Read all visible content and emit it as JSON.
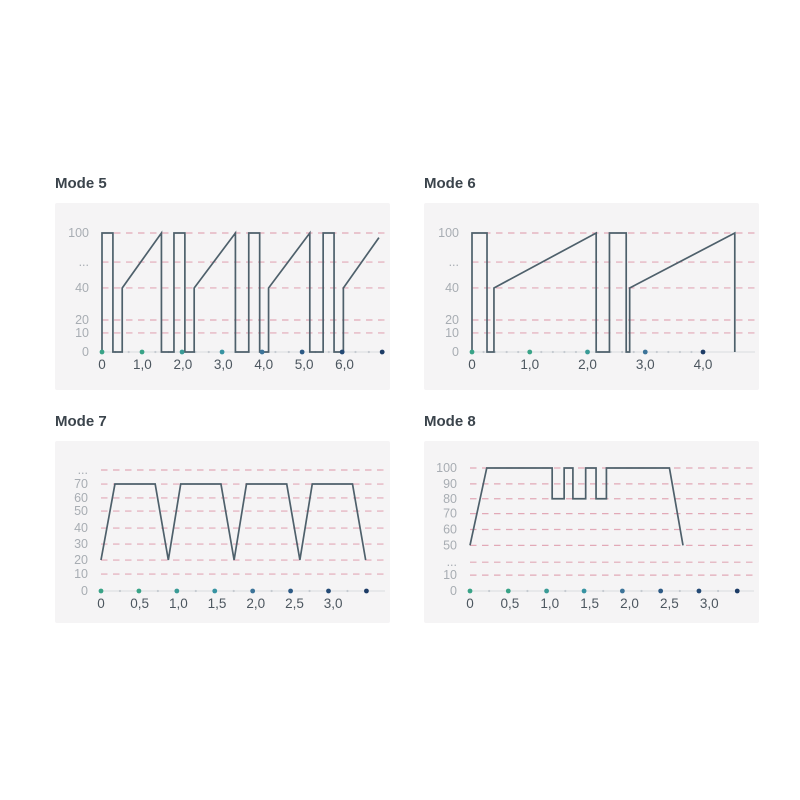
{
  "page": {
    "background": "#ffffff"
  },
  "style": {
    "panel_bg": "#f5f4f5",
    "waveform_color": "#4e606b",
    "grid_color": "#e2a9b7",
    "y_label_color": "#a8adb3",
    "x_label_color": "#4c565f",
    "title_color": "#3b444c",
    "baseline_color": "#d9dcde",
    "minor_dot_color": "#c5cad0"
  },
  "chart_data": [
    {
      "type": "line",
      "title": "Mode 5",
      "xlabel": "",
      "ylabel": "",
      "xlim": [
        0,
        7.0
      ],
      "grid": "horizontal-dashed",
      "x_ticks": [
        {
          "x": 0,
          "label": "0"
        },
        {
          "x": 1,
          "label": "1,0"
        },
        {
          "x": 2,
          "label": "2,0"
        },
        {
          "x": 3,
          "label": "3,0"
        },
        {
          "x": 4,
          "label": "4,0"
        },
        {
          "x": 5,
          "label": "5,0"
        },
        {
          "x": 6,
          "label": "6,0"
        }
      ],
      "y_ticks": [
        {
          "label": "100",
          "f": 1.0
        },
        {
          "label": "...",
          "f": 0.756
        },
        {
          "label": "40",
          "f": 0.538
        },
        {
          "label": "20",
          "f": 0.269
        },
        {
          "label": "10",
          "f": 0.16
        },
        {
          "label": "0",
          "f": 0.0
        }
      ],
      "value_anchors": [
        [
          0,
          0
        ],
        [
          10,
          0.16
        ],
        [
          20,
          0.269
        ],
        [
          40,
          0.538
        ],
        [
          100,
          1.0
        ]
      ],
      "points": [
        [
          0,
          0
        ],
        [
          0,
          100
        ],
        [
          0.27,
          100
        ],
        [
          0.27,
          0
        ],
        [
          0.5,
          0
        ],
        [
          0.5,
          40
        ],
        [
          1.47,
          100
        ],
        [
          1.47,
          0
        ],
        [
          1.78,
          0
        ],
        [
          1.78,
          100
        ],
        [
          2.05,
          100
        ],
        [
          2.05,
          0
        ],
        [
          2.28,
          0
        ],
        [
          2.28,
          40
        ],
        [
          3.3,
          100
        ],
        [
          3.3,
          0
        ],
        [
          3.63,
          0
        ],
        [
          3.63,
          100
        ],
        [
          3.9,
          100
        ],
        [
          3.9,
          0
        ],
        [
          4.12,
          0
        ],
        [
          4.12,
          40
        ],
        [
          5.14,
          100
        ],
        [
          5.14,
          0
        ],
        [
          5.47,
          0
        ],
        [
          5.47,
          100
        ],
        [
          5.74,
          100
        ],
        [
          5.74,
          0
        ],
        [
          5.97,
          0
        ],
        [
          5.97,
          40
        ],
        [
          6.85,
          95
        ]
      ],
      "dots": {
        "xs": [
          0,
          0.99,
          1.98,
          2.97,
          3.96,
          4.95,
          5.94,
          6.93
        ],
        "colors": [
          "#39a387",
          "#39a387",
          "#3a9b96",
          "#3793a2",
          "#3d7499",
          "#2d5a85",
          "#244a75",
          "#1d3c66"
        ]
      },
      "minor_per_gap": 2
    },
    {
      "type": "line",
      "title": "Mode 6",
      "xlabel": "",
      "ylabel": "",
      "xlim": [
        0,
        4.9
      ],
      "grid": "horizontal-dashed",
      "x_ticks": [
        {
          "x": 0,
          "label": "0"
        },
        {
          "x": 1,
          "label": "1,0"
        },
        {
          "x": 2,
          "label": "2,0"
        },
        {
          "x": 3,
          "label": "3,0"
        },
        {
          "x": 4,
          "label": "4,0"
        }
      ],
      "y_ticks": [
        {
          "label": "100",
          "f": 1.0
        },
        {
          "label": "...",
          "f": 0.756
        },
        {
          "label": "40",
          "f": 0.538
        },
        {
          "label": "20",
          "f": 0.269
        },
        {
          "label": "10",
          "f": 0.16
        },
        {
          "label": "0",
          "f": 0.0
        }
      ],
      "value_anchors": [
        [
          0,
          0
        ],
        [
          10,
          0.16
        ],
        [
          20,
          0.269
        ],
        [
          40,
          0.538
        ],
        [
          100,
          1.0
        ]
      ],
      "points": [
        [
          0,
          0
        ],
        [
          0,
          100
        ],
        [
          0.26,
          100
        ],
        [
          0.26,
          0
        ],
        [
          0.38,
          0
        ],
        [
          0.38,
          40
        ],
        [
          2.15,
          100
        ],
        [
          2.15,
          0
        ],
        [
          2.38,
          0
        ],
        [
          2.38,
          100
        ],
        [
          2.67,
          100
        ],
        [
          2.67,
          0
        ],
        [
          2.73,
          0
        ],
        [
          2.73,
          40
        ],
        [
          4.55,
          100
        ],
        [
          4.55,
          0
        ]
      ],
      "dots": {
        "xs": [
          0,
          1,
          2,
          3,
          4
        ],
        "colors": [
          "#39a387",
          "#39a387",
          "#3a9b96",
          "#3d7499",
          "#1d3c66"
        ]
      },
      "minor_per_gap": 4
    },
    {
      "type": "line",
      "title": "Mode 7",
      "xlabel": "",
      "ylabel": "",
      "xlim": [
        0,
        3.67
      ],
      "grid": "horizontal-dashed",
      "x_ticks": [
        {
          "x": 0,
          "label": "0"
        },
        {
          "x": 0.5,
          "label": "0,5"
        },
        {
          "x": 1,
          "label": "1,0"
        },
        {
          "x": 1.5,
          "label": "1,5"
        },
        {
          "x": 2,
          "label": "2,0"
        },
        {
          "x": 2.5,
          "label": "2,5"
        },
        {
          "x": 3,
          "label": "3,0"
        }
      ],
      "y_ticks": [
        {
          "label": "...",
          "f": 1.0
        },
        {
          "label": "70",
          "f": 0.884
        },
        {
          "label": "60",
          "f": 0.769
        },
        {
          "label": "50",
          "f": 0.661
        },
        {
          "label": "40",
          "f": 0.52
        },
        {
          "label": "30",
          "f": 0.388
        },
        {
          "label": "20",
          "f": 0.256
        },
        {
          "label": "10",
          "f": 0.14
        },
        {
          "label": "0",
          "f": 0.0
        }
      ],
      "value_anchors": [
        [
          0,
          0
        ],
        [
          10,
          0.14
        ],
        [
          20,
          0.256
        ],
        [
          30,
          0.388
        ],
        [
          40,
          0.52
        ],
        [
          50,
          0.661
        ],
        [
          60,
          0.769
        ],
        [
          70,
          0.884
        ]
      ],
      "points": [
        [
          0,
          20
        ],
        [
          0.18,
          70
        ],
        [
          0.7,
          70
        ],
        [
          0.87,
          20
        ],
        [
          1.03,
          70
        ],
        [
          1.55,
          70
        ],
        [
          1.72,
          20
        ],
        [
          1.88,
          70
        ],
        [
          2.4,
          70
        ],
        [
          2.57,
          20
        ],
        [
          2.73,
          70
        ],
        [
          3.25,
          70
        ],
        [
          3.42,
          20
        ]
      ],
      "dots": {
        "xs": [
          0,
          0.49,
          0.98,
          1.47,
          1.96,
          2.45,
          2.94,
          3.43
        ],
        "colors": [
          "#39a387",
          "#39a387",
          "#3a9b96",
          "#3793a2",
          "#3d7499",
          "#2d5a85",
          "#244a75",
          "#1d3c66"
        ]
      },
      "minor_per_gap": 1
    },
    {
      "type": "line",
      "title": "Mode 8",
      "xlabel": "",
      "ylabel": "",
      "xlim": [
        0,
        3.56
      ],
      "grid": "horizontal-dashed",
      "x_ticks": [
        {
          "x": 0,
          "label": "0"
        },
        {
          "x": 0.5,
          "label": "0,5"
        },
        {
          "x": 1,
          "label": "1,0"
        },
        {
          "x": 1.5,
          "label": "1,5"
        },
        {
          "x": 2,
          "label": "2,0"
        },
        {
          "x": 2.5,
          "label": "2,5"
        },
        {
          "x": 3,
          "label": "3,0"
        }
      ],
      "y_ticks": [
        {
          "label": "100",
          "f": 1.0
        },
        {
          "label": "90",
          "f": 0.871
        },
        {
          "label": "80",
          "f": 0.75
        },
        {
          "label": "70",
          "f": 0.629
        },
        {
          "label": "60",
          "f": 0.5
        },
        {
          "label": "50",
          "f": 0.371
        },
        {
          "label": "...",
          "f": 0.234
        },
        {
          "label": "10",
          "f": 0.129
        },
        {
          "label": "0",
          "f": 0.0
        }
      ],
      "value_anchors": [
        [
          0,
          0
        ],
        [
          10,
          0.129
        ],
        [
          50,
          0.371
        ],
        [
          60,
          0.5
        ],
        [
          70,
          0.629
        ],
        [
          80,
          0.75
        ],
        [
          90,
          0.871
        ],
        [
          100,
          1.0
        ]
      ],
      "points": [
        [
          0,
          50
        ],
        [
          0.21,
          100
        ],
        [
          1.03,
          100
        ],
        [
          1.03,
          80
        ],
        [
          1.18,
          80
        ],
        [
          1.18,
          100
        ],
        [
          1.29,
          100
        ],
        [
          1.29,
          80
        ],
        [
          1.45,
          80
        ],
        [
          1.45,
          100
        ],
        [
          1.58,
          100
        ],
        [
          1.58,
          80
        ],
        [
          1.71,
          80
        ],
        [
          1.71,
          100
        ],
        [
          2.5,
          100
        ],
        [
          2.67,
          50
        ]
      ],
      "dots": {
        "xs": [
          0,
          0.48,
          0.96,
          1.43,
          1.91,
          2.39,
          2.87,
          3.35
        ],
        "colors": [
          "#39a387",
          "#39a387",
          "#3a9b96",
          "#3793a2",
          "#3d7499",
          "#2d5a85",
          "#244a75",
          "#1d3c66"
        ]
      },
      "minor_per_gap": 1
    }
  ]
}
